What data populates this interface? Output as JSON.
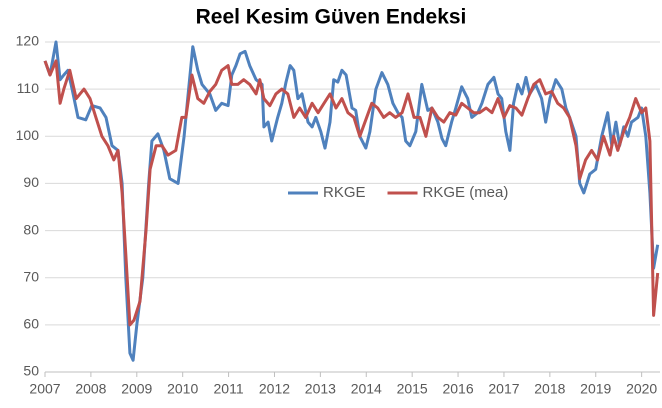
{
  "chart_data": {
    "type": "line",
    "title": "Reel Kesim Güven Endeksi",
    "xlim": [
      2007,
      2020.4
    ],
    "xticks": [
      2007,
      2008,
      2009,
      2010,
      2011,
      2012,
      2013,
      2014,
      2015,
      2016,
      2017,
      2018,
      2019,
      2020
    ],
    "ylim": [
      50,
      120
    ],
    "yticks": [
      50,
      60,
      70,
      80,
      90,
      100,
      110,
      120
    ],
    "grid": true,
    "legend": "center",
    "series": [
      {
        "name": "RKGE",
        "color": "#4f81bd",
        "x": [
          2007,
          2007.11,
          2007.24,
          2007.33,
          2007.41,
          2007.5,
          2007.59,
          2007.72,
          2007.89,
          2008.02,
          2008.2,
          2008.33,
          2008.46,
          2008.59,
          2008.68,
          2008.76,
          2008.85,
          2008.92,
          2009,
          2009.13,
          2009.26,
          2009.33,
          2009.46,
          2009.59,
          2009.72,
          2009.9,
          2010.03,
          2010.11,
          2010.22,
          2010.33,
          2010.42,
          2010.59,
          2010.72,
          2010.85,
          2010.99,
          2011.07,
          2011.16,
          2011.25,
          2011.36,
          2011.46,
          2011.6,
          2011.73,
          2011.77,
          2011.86,
          2011.94,
          2012.07,
          2012.16,
          2012.25,
          2012.34,
          2012.42,
          2012.51,
          2012.6,
          2012.73,
          2012.82,
          2012.9,
          2013.01,
          2013.1,
          2013.21,
          2013.29,
          2013.38,
          2013.47,
          2013.56,
          2013.69,
          2013.77,
          2013.86,
          2013.99,
          2014.08,
          2014.21,
          2014.34,
          2014.47,
          2014.58,
          2014.69,
          2014.78,
          2014.86,
          2014.95,
          2015.08,
          2015.21,
          2015.34,
          2015.43,
          2015.56,
          2015.65,
          2015.73,
          2015.86,
          2015.95,
          2016.08,
          2016.21,
          2016.3,
          2016.43,
          2016.52,
          2016.65,
          2016.78,
          2016.87,
          2016.95,
          2017.04,
          2017.13,
          2017.21,
          2017.3,
          2017.39,
          2017.48,
          2017.56,
          2017.69,
          2017.82,
          2017.91,
          2018,
          2018.13,
          2018.26,
          2018.35,
          2018.43,
          2018.57,
          2018.65,
          2018.74,
          2018.87,
          2019,
          2019.13,
          2019.26,
          2019.35,
          2019.44,
          2019.52,
          2019.61,
          2019.7,
          2019.78,
          2019.92,
          2020,
          2020.09,
          2020.18,
          2020.26,
          2020.35
        ],
        "values": [
          116,
          113,
          120,
          112,
          113,
          114,
          110,
          104,
          103.5,
          106.5,
          106,
          104,
          98,
          97,
          90,
          70,
          54,
          52.5,
          60,
          70,
          90,
          99,
          100.5,
          97,
          91,
          90,
          100,
          108,
          119,
          114,
          111,
          109,
          105.5,
          107,
          106.5,
          113,
          115,
          117.5,
          118,
          115,
          112,
          111,
          102,
          103,
          99,
          104,
          107,
          111.5,
          115,
          114,
          108,
          109,
          103,
          102,
          104,
          101,
          97.5,
          103,
          112,
          111.5,
          114,
          113,
          106,
          105.5,
          100,
          97.5,
          101,
          110,
          113.5,
          111,
          107,
          105,
          104,
          99,
          98,
          101,
          111,
          105.5,
          106,
          103,
          99.5,
          98,
          103,
          106,
          110.5,
          108,
          104,
          105,
          107,
          111,
          112.5,
          109,
          108,
          101,
          97,
          107,
          111,
          109,
          112.5,
          109,
          111,
          108,
          103,
          108,
          112,
          110,
          106,
          104,
          100,
          90,
          88,
          92,
          93,
          100,
          105,
          98,
          103,
          98,
          102,
          100,
          103,
          104,
          106,
          100,
          88,
          72,
          77
        ]
      },
      {
        "name": "RKGE (mea)",
        "color": "#c0504d",
        "x": [
          2007,
          2007.11,
          2007.24,
          2007.33,
          2007.41,
          2007.54,
          2007.68,
          2007.85,
          2007.98,
          2008.11,
          2008.24,
          2008.37,
          2008.5,
          2008.59,
          2008.68,
          2008.76,
          2008.85,
          2008.94,
          2009.07,
          2009.2,
          2009.29,
          2009.42,
          2009.55,
          2009.68,
          2009.85,
          2009.98,
          2010.07,
          2010.2,
          2010.33,
          2010.46,
          2010.59,
          2010.72,
          2010.85,
          2010.99,
          2011.07,
          2011.2,
          2011.33,
          2011.46,
          2011.6,
          2011.68,
          2011.77,
          2011.9,
          2012.03,
          2012.16,
          2012.29,
          2012.42,
          2012.55,
          2012.68,
          2012.82,
          2012.95,
          2013.08,
          2013.21,
          2013.34,
          2013.47,
          2013.6,
          2013.73,
          2013.86,
          2013.99,
          2014.12,
          2014.25,
          2014.38,
          2014.51,
          2014.64,
          2014.78,
          2014.91,
          2015.04,
          2015.17,
          2015.3,
          2015.43,
          2015.56,
          2015.69,
          2015.82,
          2015.95,
          2016.08,
          2016.21,
          2016.34,
          2016.47,
          2016.61,
          2016.74,
          2016.87,
          2017,
          2017.13,
          2017.26,
          2017.39,
          2017.52,
          2017.65,
          2017.78,
          2017.91,
          2018.04,
          2018.17,
          2018.3,
          2018.43,
          2018.57,
          2018.65,
          2018.78,
          2018.91,
          2019.04,
          2019.17,
          2019.31,
          2019.39,
          2019.48,
          2019.61,
          2019.74,
          2019.87,
          2020,
          2020.09,
          2020.18,
          2020.26,
          2020.35
        ],
        "values": [
          116,
          113,
          116,
          107,
          110,
          114,
          108,
          110,
          108,
          104,
          100,
          98,
          95,
          97,
          88,
          75,
          60,
          61,
          65,
          80,
          93,
          98,
          98,
          96,
          97,
          104,
          104,
          113,
          108,
          107,
          109.5,
          111,
          114,
          115,
          111,
          111,
          112,
          111,
          109,
          112,
          108,
          106.5,
          109,
          110,
          109,
          104,
          106,
          104,
          107,
          105,
          107,
          109,
          106,
          108,
          105,
          104,
          100,
          103.5,
          107,
          106,
          104,
          105,
          104,
          105,
          109,
          104,
          104,
          100,
          106,
          104,
          103,
          105,
          104.5,
          107,
          106,
          105,
          105,
          106,
          105,
          108,
          104,
          106.5,
          106,
          104.5,
          108,
          111,
          112,
          109,
          109.5,
          107,
          106,
          104,
          98,
          91,
          95,
          97,
          95,
          100,
          96,
          100,
          97,
          101,
          104,
          108,
          105,
          106,
          99,
          62,
          71
        ]
      }
    ]
  }
}
